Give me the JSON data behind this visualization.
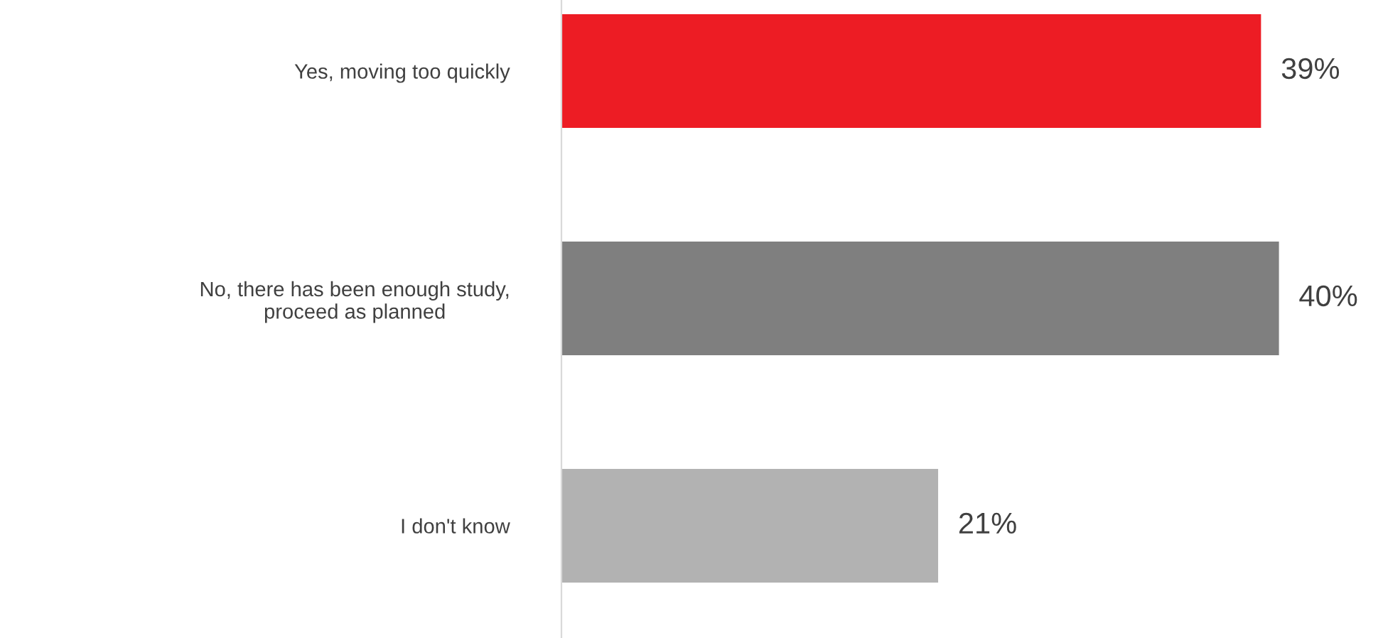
{
  "chart_data": {
    "type": "bar",
    "orientation": "horizontal",
    "categories": [
      "Yes, moving too quickly",
      "No, there has been enough study,\nproceed as planned",
      "I don't know"
    ],
    "values": [
      39,
      40,
      21
    ],
    "colors": [
      "#ed1c24",
      "#7f7f7f",
      "#b2b2b2"
    ],
    "value_labels": [
      "39%",
      "40%",
      "21%"
    ],
    "grid": false,
    "legend": false
  }
}
